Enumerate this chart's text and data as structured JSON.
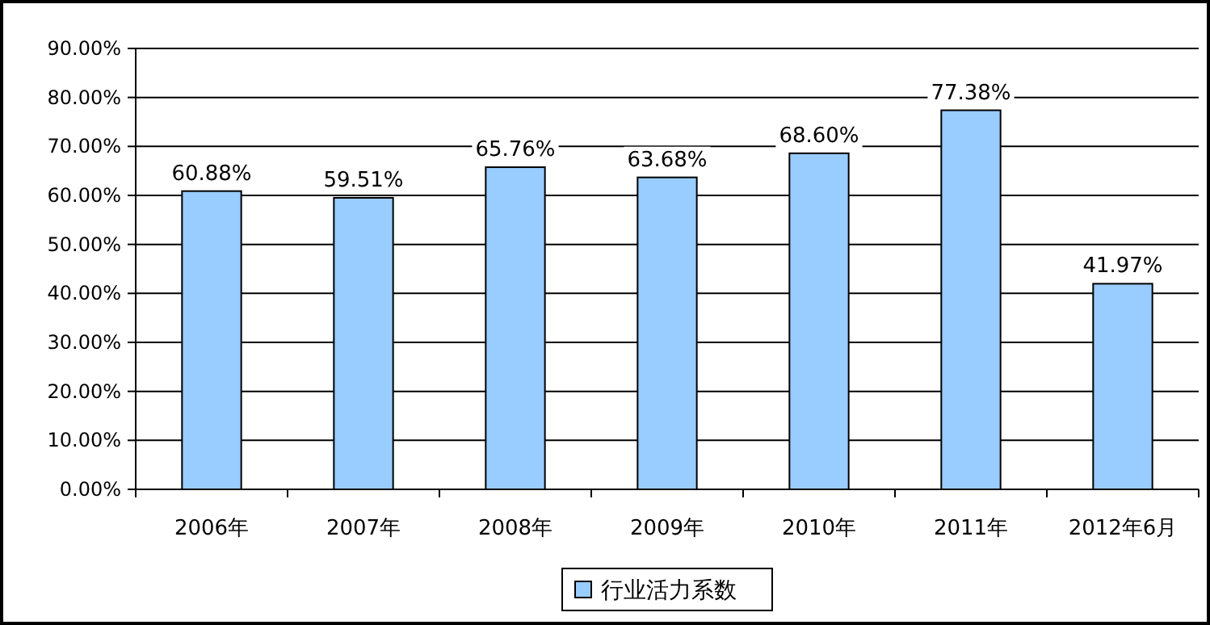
{
  "chart_data": {
    "type": "bar",
    "categories": [
      "2006年",
      "2007年",
      "2008年",
      "2009年",
      "2010年",
      "2011年",
      "2012年6月"
    ],
    "series": [
      {
        "name": "行业活力系数",
        "color": "#99ccff",
        "values": [
          60.88,
          59.51,
          65.76,
          63.68,
          68.6,
          77.38,
          41.97
        ],
        "value_labels": [
          "60.88%",
          "59.51%",
          "65.76%",
          "63.68%",
          "68.60%",
          "77.38%",
          "41.97%"
        ]
      }
    ],
    "ylim": [
      0,
      90
    ],
    "yticks": [
      {
        "value": 0,
        "label": "0.00%"
      },
      {
        "value": 10,
        "label": "10.00%"
      },
      {
        "value": 20,
        "label": "20.00%"
      },
      {
        "value": 30,
        "label": "30.00%"
      },
      {
        "value": 40,
        "label": "40.00%"
      },
      {
        "value": 50,
        "label": "50.00%"
      },
      {
        "value": 60,
        "label": "60.00%"
      },
      {
        "value": 70,
        "label": "70.00%"
      },
      {
        "value": 80,
        "label": "80.00%"
      },
      {
        "value": 90,
        "label": "90.00%"
      }
    ],
    "grid": "y",
    "legend": "bottom"
  }
}
